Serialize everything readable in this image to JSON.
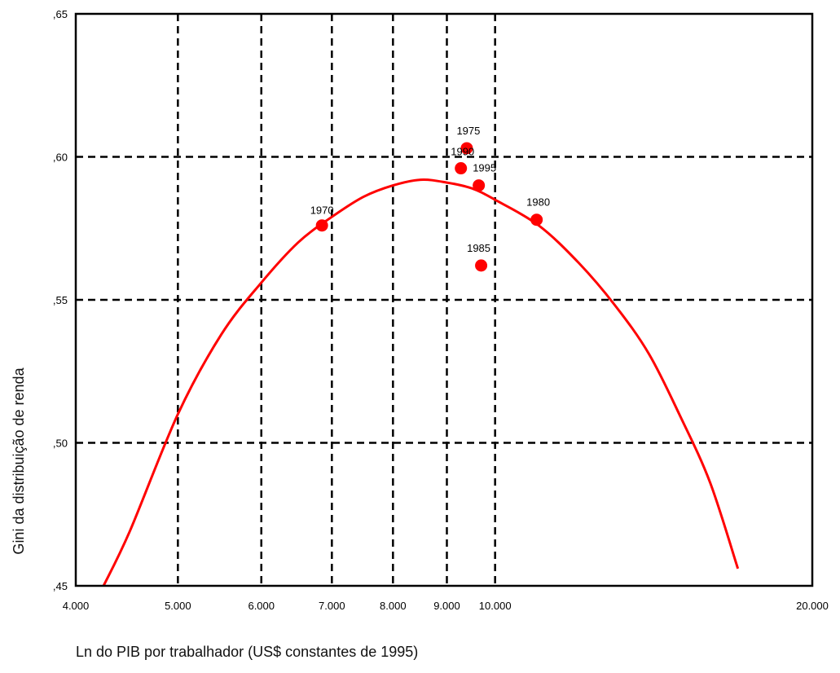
{
  "chart_data": {
    "type": "scatter",
    "title": "",
    "xlabel": "Ln do PIB por trabalhador (US$ constantes de 1995)",
    "ylabel": "Gini da distribuição de renda",
    "x_scale": "log",
    "xlim": [
      4000,
      20000
    ],
    "ylim": [
      0.45,
      0.65
    ],
    "x_ticks": [
      {
        "value": 4000,
        "label": "4.000"
      },
      {
        "value": 5000,
        "label": "5.000"
      },
      {
        "value": 6000,
        "label": "6.000"
      },
      {
        "value": 7000,
        "label": "7.000"
      },
      {
        "value": 8000,
        "label": "8.000"
      },
      {
        "value": 9000,
        "label": "9.000"
      },
      {
        "value": 10000,
        "label": "10.000"
      },
      {
        "value": 20000,
        "label": "20.000"
      }
    ],
    "y_ticks": [
      {
        "value": 0.45,
        "label": ",45"
      },
      {
        "value": 0.5,
        "label": ",50"
      },
      {
        "value": 0.55,
        "label": ",55"
      },
      {
        "value": 0.6,
        "label": ",60"
      },
      {
        "value": 0.65,
        "label": ",65"
      }
    ],
    "grid": true,
    "x_gridlines": [
      5000,
      6000,
      7000,
      8000,
      9000,
      10000
    ],
    "y_gridlines": [
      0.5,
      0.55,
      0.6
    ],
    "points": [
      {
        "label": "1970",
        "x": 6850,
        "y": 0.576
      },
      {
        "label": "1975",
        "x": 9400,
        "y": 0.603
      },
      {
        "label": "1990",
        "x": 9280,
        "y": 0.596
      },
      {
        "label": "1995",
        "x": 9650,
        "y": 0.59
      },
      {
        "label": "1980",
        "x": 10950,
        "y": 0.578
      },
      {
        "label": "1985",
        "x": 9700,
        "y": 0.562
      }
    ],
    "fit_curve": [
      {
        "x": 4250,
        "y": 0.45
      },
      {
        "x": 4500,
        "y": 0.469
      },
      {
        "x": 5000,
        "y": 0.51
      },
      {
        "x": 5500,
        "y": 0.538
      },
      {
        "x": 6000,
        "y": 0.556
      },
      {
        "x": 6500,
        "y": 0.57
      },
      {
        "x": 7000,
        "y": 0.579
      },
      {
        "x": 7500,
        "y": 0.586
      },
      {
        "x": 8000,
        "y": 0.59
      },
      {
        "x": 8500,
        "y": 0.592
      },
      {
        "x": 9000,
        "y": 0.591
      },
      {
        "x": 9500,
        "y": 0.589
      },
      {
        "x": 10000,
        "y": 0.585
      },
      {
        "x": 11000,
        "y": 0.576
      },
      {
        "x": 12000,
        "y": 0.563
      },
      {
        "x": 13000,
        "y": 0.548
      },
      {
        "x": 14000,
        "y": 0.531
      },
      {
        "x": 15000,
        "y": 0.509
      },
      {
        "x": 16000,
        "y": 0.486
      },
      {
        "x": 17000,
        "y": 0.456
      }
    ],
    "colors": {
      "points": "#ff0000",
      "curve": "#ff0000",
      "grid": "#000000",
      "frame": "#000000"
    }
  }
}
